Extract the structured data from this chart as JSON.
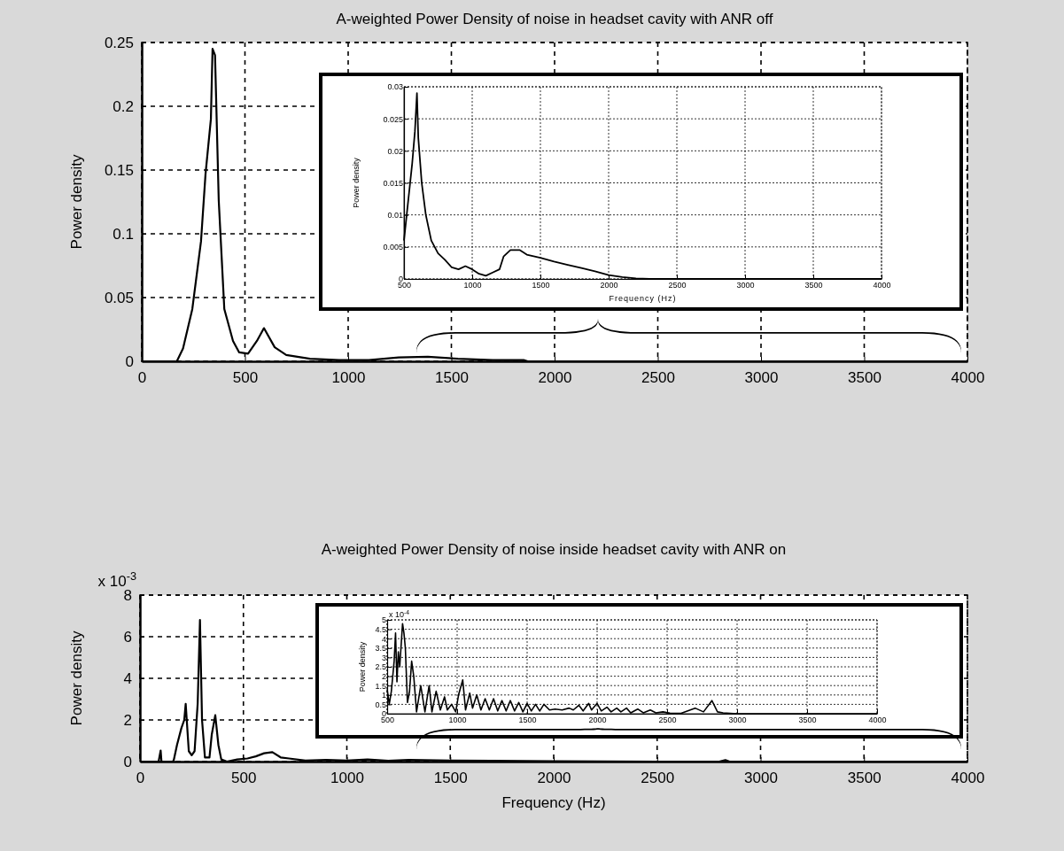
{
  "chart_data": [
    {
      "type": "line",
      "title": "A-weighted Power Density of noise in headset cavity with ANR off",
      "ylabel": "Power density",
      "xlim": [
        0,
        4000
      ],
      "ylim": [
        0,
        0.25
      ],
      "xticks": [
        0,
        500,
        1000,
        1500,
        2000,
        2500,
        3000,
        3500,
        4000
      ],
      "yticks": [
        0,
        0.05,
        0.1,
        0.15,
        0.2,
        0.25
      ],
      "grid": true,
      "color": "#000000",
      "x": [
        0,
        170,
        200,
        245,
        287,
        309,
        335,
        343,
        355,
        373,
        400,
        442,
        472,
        515,
        558,
        592,
        644,
        700,
        815,
        957,
        1100,
        1245,
        1386,
        1532,
        1700,
        1850,
        1870,
        4000
      ],
      "values": [
        0,
        0,
        0.01,
        0.041,
        0.094,
        0.147,
        0.19,
        0.245,
        0.24,
        0.126,
        0.041,
        0.016,
        0.007,
        0.006,
        0.016,
        0.026,
        0.011,
        0.005,
        0.002,
        0.001,
        0.001,
        0.003,
        0.0035,
        0.002,
        0.001,
        0.001,
        0,
        0
      ]
    },
    {
      "type": "line",
      "xlabel": "Frequency (Hz)",
      "ylabel": "Power density",
      "xlim": [
        500,
        4000
      ],
      "ylim": [
        0,
        0.03
      ],
      "xticks": [
        500,
        1000,
        1500,
        2000,
        2500,
        3000,
        3500,
        4000
      ],
      "yticks": [
        0,
        0.005,
        0.01,
        0.015,
        0.02,
        0.025,
        0.03
      ],
      "grid": true,
      "color": "#000000",
      "x": [
        500,
        520,
        560,
        580,
        595,
        605,
        630,
        660,
        700,
        750,
        800,
        850,
        900,
        950,
        1000,
        1050,
        1100,
        1150,
        1200,
        1230,
        1280,
        1350,
        1400,
        1500,
        1600,
        1700,
        1800,
        1900,
        2000,
        2100,
        2200,
        2300,
        4000
      ],
      "values": [
        0.006,
        0.01,
        0.018,
        0.023,
        0.029,
        0.022,
        0.015,
        0.01,
        0.006,
        0.004,
        0.003,
        0.0018,
        0.0015,
        0.002,
        0.0015,
        0.0008,
        0.0005,
        0.001,
        0.0015,
        0.0035,
        0.0045,
        0.0045,
        0.0038,
        0.0033,
        0.0027,
        0.0022,
        0.0017,
        0.0012,
        0.0006,
        0.0003,
        0.0001,
        0,
        0
      ]
    },
    {
      "type": "line",
      "title": "A-weighted Power Density of noise inside headset cavity with ANR on",
      "xlabel": "Frequency (Hz)",
      "ylabel": "Power density",
      "annotations": [
        "x 10$^{-3}$"
      ],
      "xlim": [
        0,
        4000
      ],
      "ylim": [
        0,
        8
      ],
      "xticks": [
        0,
        500,
        1000,
        1500,
        2000,
        2500,
        3000,
        3500,
        4000
      ],
      "yticks": [
        0,
        2,
        4,
        6,
        8
      ],
      "grid": true,
      "color": "#000000",
      "x": [
        0,
        90,
        100,
        104,
        160,
        164,
        179,
        200,
        214,
        221,
        236,
        250,
        264,
        279,
        290,
        300,
        314,
        336,
        347,
        364,
        379,
        393,
        420,
        470,
        520,
        560,
        600,
        640,
        680,
        720,
        800,
        900,
        1000,
        1100,
        1200,
        1300,
        1500,
        1700,
        2000,
        2500,
        2800,
        2830,
        2850,
        4000
      ],
      "values": [
        0,
        0,
        0.53,
        0,
        0,
        0.1,
        0.8,
        1.6,
        2.0,
        2.77,
        0.5,
        0.3,
        0.5,
        2.8,
        6.8,
        2.0,
        0.2,
        0.2,
        1.3,
        2.23,
        0.8,
        0.1,
        0,
        0.1,
        0.15,
        0.25,
        0.4,
        0.45,
        0.2,
        0.15,
        0.05,
        0.08,
        0.05,
        0.1,
        0.04,
        0.08,
        0.05,
        0.04,
        0.02,
        0,
        0,
        0.07,
        0,
        0
      ]
    },
    {
      "type": "line",
      "ylabel": "Power density",
      "annotations": [
        "x 10$^{-4}$"
      ],
      "xlim": [
        500,
        4000
      ],
      "ylim": [
        0,
        5
      ],
      "xticks": [
        500,
        1000,
        1500,
        2000,
        2500,
        3000,
        3500,
        4000
      ],
      "yticks": [
        0,
        0.5,
        1,
        1.5,
        2,
        2.5,
        3,
        3.5,
        4,
        4.5,
        5
      ],
      "grid": true,
      "color": "#000000",
      "x": [
        500,
        515,
        530,
        550,
        560,
        570,
        580,
        590,
        610,
        620,
        630,
        645,
        660,
        675,
        690,
        710,
        740,
        770,
        800,
        820,
        850,
        880,
        910,
        930,
        960,
        990,
        1010,
        1040,
        1060,
        1090,
        1110,
        1140,
        1170,
        1200,
        1230,
        1260,
        1290,
        1320,
        1350,
        1380,
        1410,
        1440,
        1470,
        1500,
        1530,
        1560,
        1590,
        1620,
        1660,
        1700,
        1750,
        1800,
        1830,
        1870,
        1900,
        1940,
        1960,
        2000,
        2030,
        2070,
        2100,
        2140,
        2170,
        2210,
        2240,
        2290,
        2330,
        2380,
        2420,
        2470,
        2520,
        2600,
        2700,
        2760,
        2820,
        2860,
        2900,
        3000,
        4000
      ],
      "values": [
        1.3,
        0.5,
        1.2,
        2.8,
        4.3,
        1.7,
        3.3,
        2.5,
        4.8,
        4.3,
        3.5,
        0.6,
        1.2,
        2.8,
        2.0,
        0.1,
        1.5,
        0.1,
        1.5,
        0.1,
        1.2,
        0.2,
        0.9,
        0.2,
        0.5,
        0.1,
        1.0,
        1.8,
        0.2,
        1.1,
        0.3,
        1.0,
        0.2,
        0.8,
        0.2,
        0.8,
        0.15,
        0.7,
        0.15,
        0.7,
        0.15,
        0.6,
        0.1,
        0.55,
        0.15,
        0.5,
        0.15,
        0.5,
        0.2,
        0.25,
        0.2,
        0.3,
        0.2,
        0.45,
        0.15,
        0.55,
        0.2,
        0.55,
        0.15,
        0.35,
        0.1,
        0.3,
        0.1,
        0.3,
        0.05,
        0.25,
        0.05,
        0.2,
        0.05,
        0.1,
        0.03,
        0.02,
        0.3,
        0.1,
        0.7,
        0.1,
        0.05,
        0,
        0
      ]
    }
  ]
}
